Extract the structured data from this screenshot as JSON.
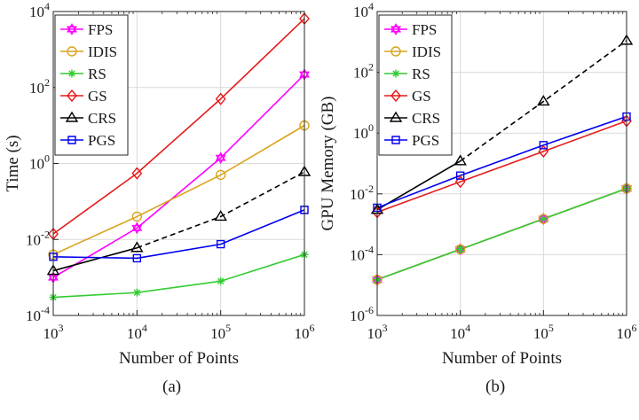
{
  "chart_data": [
    {
      "type": "line",
      "panel_label": "(a)",
      "xlabel": "Number of Points",
      "ylabel": "Time (s)",
      "xscale": "log",
      "yscale": "log",
      "xlim": [
        1000,
        1000000
      ],
      "ylim": [
        0.0001,
        10000
      ],
      "x_tick_labels": [
        {
          "base": "10",
          "exp": "3"
        },
        {
          "base": "10",
          "exp": "4"
        },
        {
          "base": "10",
          "exp": "5"
        },
        {
          "base": "10",
          "exp": "6"
        }
      ],
      "y_tick_labels": [
        {
          "base": "10",
          "exp": "-4"
        },
        {
          "base": "10",
          "exp": "-2"
        },
        {
          "base": "10",
          "exp": "0"
        },
        {
          "base": "10",
          "exp": "2"
        },
        {
          "base": "10",
          "exp": "4"
        }
      ],
      "grid": true,
      "legend_position": "top-left",
      "x": [
        1000,
        10000,
        100000,
        1000000
      ],
      "series": [
        {
          "name": "FPS",
          "marker": "hexagram",
          "color": "#ff00ff",
          "values": [
            0.001,
            0.02,
            1.4,
            220
          ]
        },
        {
          "name": "IDIS",
          "marker": "circle",
          "color": "#d9a21b",
          "values": [
            0.004,
            0.04,
            0.5,
            10
          ]
        },
        {
          "name": "RS",
          "marker": "asterisk",
          "color": "#33cc33",
          "values": [
            0.0003,
            0.0004,
            0.0008,
            0.004
          ]
        },
        {
          "name": "GS",
          "marker": "diamond",
          "color": "#e51a1a",
          "values": [
            0.014,
            0.55,
            50,
            6500
          ]
        },
        {
          "name": "CRS",
          "marker": "triangle",
          "color": "#000000",
          "values": [
            0.0015,
            0.006,
            0.04,
            0.6
          ],
          "dashed_from_index": 1
        },
        {
          "name": "PGS",
          "marker": "square",
          "color": "#0000ee",
          "values": [
            0.0035,
            0.0032,
            0.0075,
            0.06
          ]
        }
      ]
    },
    {
      "type": "line",
      "panel_label": "(b)",
      "xlabel": "Number of Points",
      "ylabel": "GPU Memory (GB)",
      "xscale": "log",
      "yscale": "log",
      "xlim": [
        1000,
        1000000
      ],
      "ylim": [
        1e-06,
        10000
      ],
      "x_tick_labels": [
        {
          "base": "10",
          "exp": "3"
        },
        {
          "base": "10",
          "exp": "4"
        },
        {
          "base": "10",
          "exp": "5"
        },
        {
          "base": "10",
          "exp": "6"
        }
      ],
      "y_tick_labels": [
        {
          "base": "10",
          "exp": "-6"
        },
        {
          "base": "10",
          "exp": "-4"
        },
        {
          "base": "10",
          "exp": "-2"
        },
        {
          "base": "10",
          "exp": "0"
        },
        {
          "base": "10",
          "exp": "2"
        },
        {
          "base": "10",
          "exp": "4"
        }
      ],
      "grid": true,
      "legend_position": "top-left",
      "x": [
        1000,
        10000,
        100000,
        1000000
      ],
      "series": [
        {
          "name": "FPS",
          "marker": "hexagram",
          "color": "#ff00ff",
          "values": [
            1.5e-05,
            0.00015,
            0.0015,
            0.015
          ]
        },
        {
          "name": "IDIS",
          "marker": "circle",
          "color": "#d9a21b",
          "values": [
            1.5e-05,
            0.00015,
            0.0015,
            0.015
          ]
        },
        {
          "name": "RS",
          "marker": "asterisk",
          "color": "#33cc33",
          "values": [
            1.5e-05,
            0.00015,
            0.0015,
            0.015
          ]
        },
        {
          "name": "GS",
          "marker": "diamond",
          "color": "#e51a1a",
          "values": [
            0.0025,
            0.025,
            0.25,
            2.5
          ]
        },
        {
          "name": "CRS",
          "marker": "triangle",
          "color": "#000000",
          "values": [
            0.003,
            0.12,
            11,
            1100
          ],
          "dashed_from_index": 1
        },
        {
          "name": "PGS",
          "marker": "square",
          "color": "#0000ee",
          "values": [
            0.0035,
            0.04,
            0.4,
            3.5
          ]
        }
      ]
    }
  ]
}
